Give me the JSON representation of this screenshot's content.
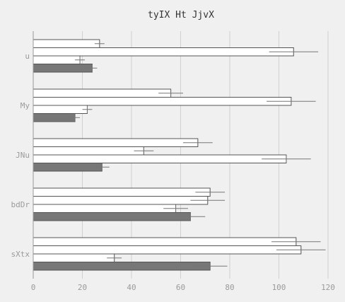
{
  "chart_data": {
    "type": "bar",
    "orientation": "horizontal",
    "title": "tyIX  Ht JjvX",
    "xlabel": "",
    "ylabel": "",
    "xlim": [
      0,
      120
    ],
    "xticks": [
      0,
      20,
      40,
      60,
      80,
      100,
      120
    ],
    "grid": true,
    "categories": [
      "u",
      "My",
      "JNu",
      "bdDr",
      "sXtx"
    ],
    "series_colors": [
      "#777777",
      "#ffffff",
      "#ffffff",
      "#ffffff"
    ],
    "series": [
      {
        "values": [
          24,
          17,
          28,
          64,
          72
        ],
        "errors": [
          2,
          2,
          3,
          6,
          7
        ]
      },
      {
        "values": [
          19,
          22,
          103,
          58,
          33
        ],
        "errors": [
          2,
          2,
          10,
          5,
          3
        ]
      },
      {
        "values": [
          106,
          105,
          45,
          71,
          109
        ],
        "errors": [
          10,
          10,
          4,
          7,
          10
        ]
      },
      {
        "values": [
          27,
          56,
          67,
          72,
          107
        ],
        "errors": [
          2,
          5,
          6,
          6,
          10
        ]
      }
    ]
  }
}
